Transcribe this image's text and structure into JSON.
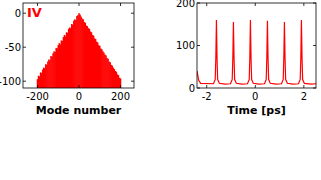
{
  "chart_data": [
    {
      "type": "bar",
      "annotation": "IV",
      "xlabel": "Mode number",
      "color": "#ff0000",
      "grid": false,
      "x": [
        -200,
        -195,
        -190,
        -185,
        -180,
        -175,
        -170,
        -165,
        -160,
        -155,
        -150,
        -145,
        -140,
        -135,
        -130,
        -125,
        -120,
        -115,
        -110,
        -105,
        -100,
        -95,
        -90,
        -85,
        -80,
        -75,
        -70,
        -65,
        -60,
        -55,
        -50,
        -45,
        -40,
        -35,
        -30,
        -25,
        -20,
        -15,
        -10,
        -5,
        0,
        5,
        10,
        15,
        20,
        25,
        30,
        35,
        40,
        45,
        50,
        55,
        60,
        65,
        70,
        75,
        80,
        85,
        90,
        95,
        100,
        105,
        110,
        115,
        120,
        125,
        130,
        135,
        140,
        145,
        150,
        155,
        160,
        165,
        170,
        175,
        180,
        185,
        190,
        195,
        200
      ],
      "values": [
        -97,
        -92,
        -93,
        -87,
        -88,
        -83,
        -80,
        -81,
        -75,
        -76,
        -71,
        -68,
        -69,
        -63,
        -64,
        -59,
        -56,
        -57,
        -51,
        -52,
        -47,
        -44,
        -46,
        -40,
        -41,
        -35,
        -32,
        -34,
        -28,
        -29,
        -23,
        -21,
        -22,
        -16,
        -17,
        -11,
        -9,
        -10,
        -4,
        -3,
        0,
        -2,
        -5,
        -8,
        -9,
        -13,
        -14,
        -18,
        -19,
        -22,
        -23,
        -27,
        -28,
        -32,
        -33,
        -37,
        -38,
        -42,
        -43,
        -47,
        -48,
        -52,
        -53,
        -56,
        -58,
        -61,
        -62,
        -66,
        -67,
        -71,
        -72,
        -76,
        -77,
        -80,
        -82,
        -85,
        -86,
        -90,
        -91,
        -95,
        -96
      ],
      "xlim": [
        -270,
        265
      ],
      "xticks": [
        -200,
        0,
        200
      ],
      "ylim": [
        -110,
        15
      ],
      "yticks": [
        -100,
        -50,
        0
      ]
    },
    {
      "type": "line",
      "xlabel": "Time [ps]",
      "color": "#ff0000",
      "grid": false,
      "x": [
        -2.4,
        -2.33,
        -2.25,
        -1.72,
        -1.65,
        -1.625,
        -1.6,
        -1.575,
        -1.55,
        -1.48,
        -1.25,
        -1.02,
        -0.95,
        -0.925,
        -0.9,
        -0.875,
        -0.85,
        -0.78,
        -0.55,
        -0.32,
        -0.25,
        -0.225,
        -0.2,
        -0.175,
        -0.15,
        -0.08,
        0.15,
        0.38,
        0.45,
        0.475,
        0.5,
        0.525,
        0.55,
        0.62,
        0.85,
        1.08,
        1.15,
        1.175,
        1.2,
        1.225,
        1.25,
        1.32,
        1.55,
        1.78,
        1.85,
        1.875,
        1.9,
        1.925,
        1.95,
        2.02,
        2.3,
        2.5
      ],
      "values": [
        40,
        18,
        11,
        10,
        20,
        70,
        160,
        70,
        20,
        11,
        9,
        10,
        20,
        70,
        155,
        70,
        20,
        11,
        9,
        10,
        20,
        70,
        160,
        70,
        20,
        11,
        9,
        10,
        20,
        70,
        158,
        70,
        20,
        11,
        9,
        10,
        20,
        70,
        155,
        70,
        20,
        11,
        9,
        10,
        20,
        70,
        160,
        70,
        20,
        11,
        9,
        10
      ],
      "xlim": [
        -2.4,
        2.5
      ],
      "xticks": [
        -2,
        0,
        2
      ],
      "ylim": [
        0,
        200
      ],
      "yticks": [
        0,
        100,
        200
      ]
    }
  ]
}
